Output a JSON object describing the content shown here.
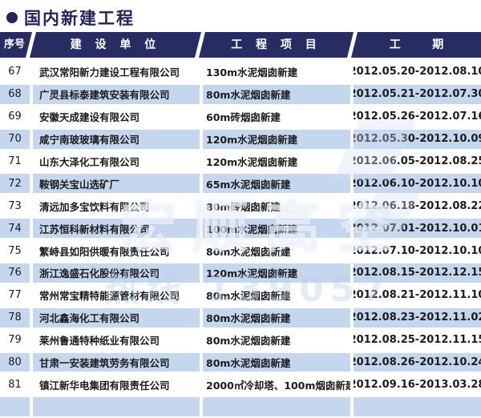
{
  "title": {
    "text": "国内新建工程"
  },
  "table": {
    "columns": [
      {
        "label": "序号"
      },
      {
        "label": "建 设 单 位"
      },
      {
        "label": "工 程 项 目"
      },
      {
        "label": "工    期"
      }
    ],
    "rows": [
      {
        "no": "67",
        "company": "武汉常阳新力建设工程有限公司",
        "project": "130m水泥烟囱新建",
        "period": "2012.05.20-2012.08.10"
      },
      {
        "no": "68",
        "company": "广灵县标泰建筑安装有限公司",
        "project": "80m水泥烟囱新建",
        "period": "2012.05.21-2012.07.30"
      },
      {
        "no": "69",
        "company": "安徽天成建设有限公司",
        "project": "60m砖烟囱新建",
        "period": "2012.05.26-2012.07.16"
      },
      {
        "no": "70",
        "company": "咸宁南玻玻璃有限公司",
        "project": "120m水泥烟囱新建",
        "period": "2012.05.30-2012.10.09"
      },
      {
        "no": "71",
        "company": "山东大泽化工有限公司",
        "project": "120m水泥烟囱新建",
        "period": "2012.06.05-2012.08.25"
      },
      {
        "no": "72",
        "company": "鞍钢关宝山选矿厂",
        "project": "65m水泥烟囱新建",
        "period": "2012.06.10-2012.10.10"
      },
      {
        "no": "73",
        "company": "清远加多宝饮料有限公司",
        "project": "80m砖烟囱新建",
        "period": "2012.06.18-2012.08.22"
      },
      {
        "no": "74",
        "company": "江苏恒科新材料有限公司",
        "project": "100m水泥烟囱新建",
        "period": "2012.07.01-2012.10.01"
      },
      {
        "no": "75",
        "company": "繁峙县如阳供暖有限责任公司",
        "project": "80m水泥烟囱新建",
        "period": "2012.07.10-2012.10.10"
      },
      {
        "no": "76",
        "company": "浙江逸盛石化股份有限公司",
        "project": "120m水泥烟囱新建",
        "period": "2012.08.15-2012.12.15"
      },
      {
        "no": "77",
        "company": "常州常宝精特能源管材有限公司",
        "project": "80m水泥烟囱新建",
        "period": "2012.08.21-2012.11.10"
      },
      {
        "no": "78",
        "company": "河北鑫海化工有限公司",
        "project": "80m水泥烟囱新建",
        "period": "2012.08.23-2012.11.02"
      },
      {
        "no": "79",
        "company": "莱州鲁通特种纸业有限公司",
        "project": "80m水泥烟囱新建",
        "period": "2012.08.25-2012.11.15"
      },
      {
        "no": "80",
        "company": "甘肃一安装建筑劳务有限公司",
        "project": "80m水泥烟囱新建",
        "period": "2012.08.26-2012.10.24"
      },
      {
        "no": "81",
        "company": "镇江新华电集团有限责任公司",
        "project": "2000㎡冷却塔、100m烟囱新建",
        "period": "2012.09.16-2013.03.28"
      }
    ]
  },
  "watermark": {
    "line1": "宏顺高空",
    "line2": "热线 139057"
  },
  "colors": {
    "header_bg": "#272c62",
    "title_color": "#23265c",
    "alt_row_bg": "#c4d7ef",
    "header_text": "#ffffff",
    "body_text": "#1c1c1c"
  }
}
